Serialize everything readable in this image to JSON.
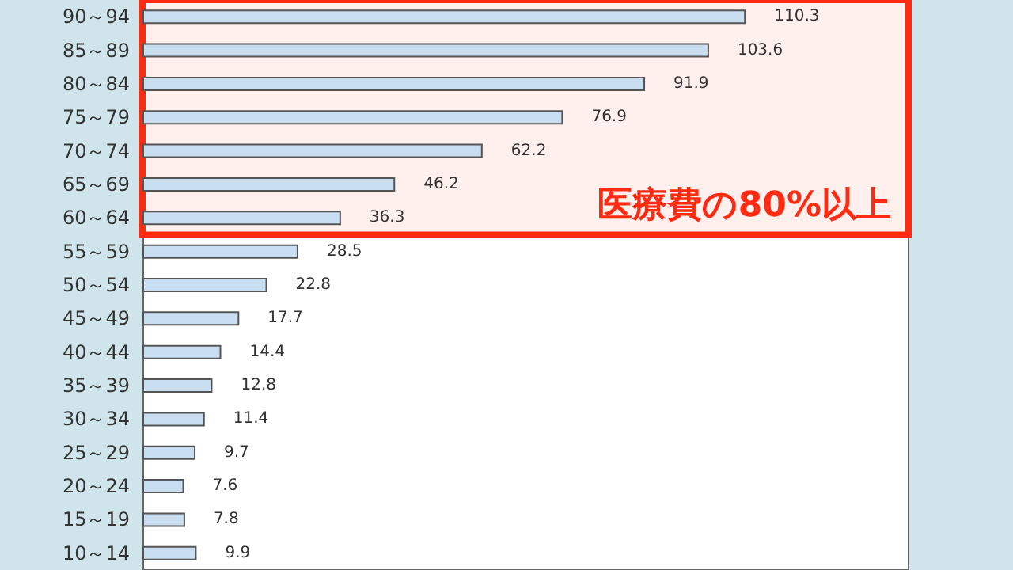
{
  "chart_data": {
    "type": "bar",
    "orientation": "horizontal",
    "categories": [
      "90～94",
      "85～89",
      "80～84",
      "75～79",
      "70～74",
      "65～69",
      "60～64",
      "55～59",
      "50～54",
      "45～49",
      "40～44",
      "35～39",
      "30～34",
      "25～29",
      "20～24",
      "15～19",
      "10～14"
    ],
    "values": [
      110.3,
      103.6,
      91.9,
      76.9,
      62.2,
      46.2,
      36.3,
      28.5,
      22.8,
      17.7,
      14.4,
      12.8,
      11.4,
      9.7,
      7.6,
      7.8,
      9.9
    ],
    "color": "#c9def0",
    "data_labels": true,
    "grid": false,
    "tick_labels": "y",
    "bands": [
      {
        "axis": "y",
        "from": "90～94",
        "to": "60～64",
        "label": "医療費の80%以上",
        "color": "#ff2a12"
      }
    ]
  }
}
